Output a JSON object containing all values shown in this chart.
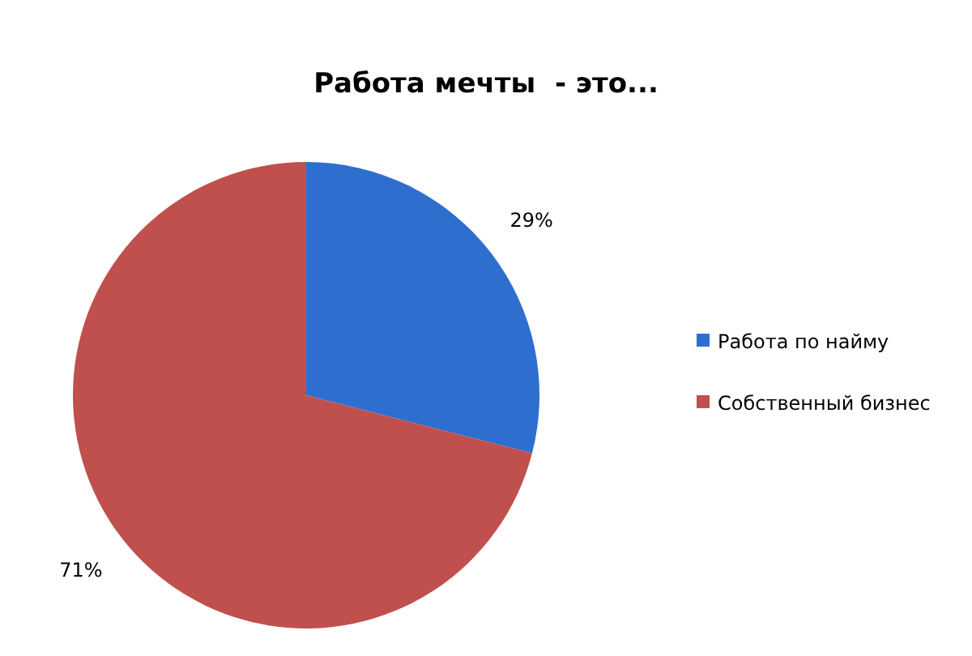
{
  "chart_data": {
    "type": "pie",
    "title": "Работа мечты  - это...",
    "categories": [
      "Работа по найму",
      "Собственный бизнес"
    ],
    "values": [
      29,
      71
    ],
    "colors": [
      "#2e6ecf",
      "#c0504d"
    ],
    "value_labels": [
      "29%",
      "71%"
    ],
    "legend": "right"
  }
}
